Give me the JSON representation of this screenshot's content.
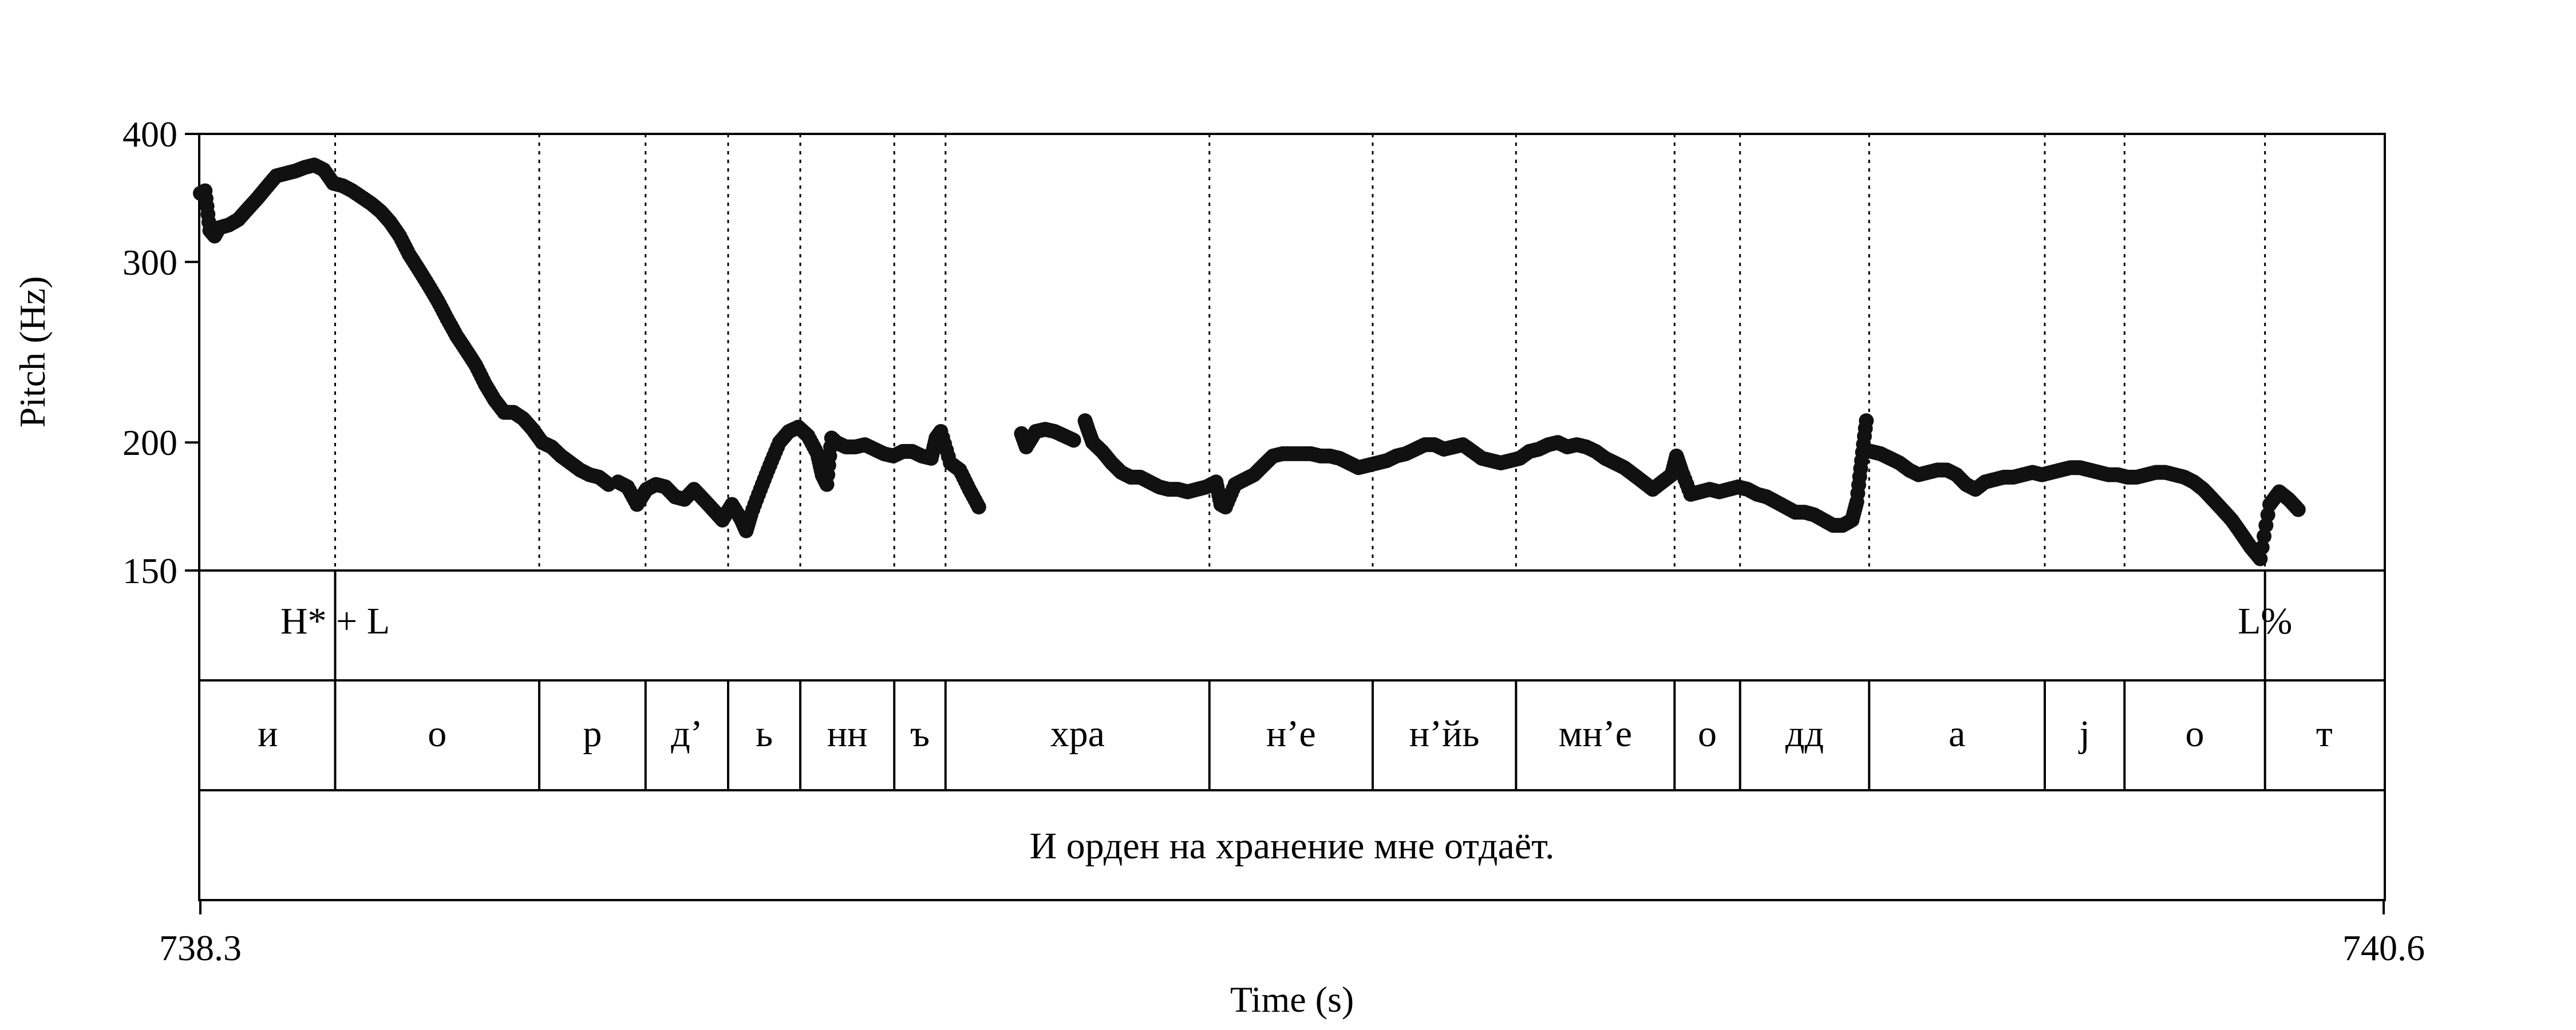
{
  "chart_data": {
    "type": "scatter",
    "xlabel": "Time (s)",
    "ylabel": "Pitch (Hz)",
    "xlim": [
      738.3,
      740.6
    ],
    "ylim": [
      150,
      400
    ],
    "yscale": "log",
    "xticks": [
      "738.3",
      "740.6"
    ],
    "yticks": [
      "150",
      "200",
      "300",
      "400"
    ],
    "grid": false,
    "boundaries": [
      738.442,
      738.657,
      738.769,
      738.856,
      738.932,
      739.031,
      739.085,
      739.363,
      739.535,
      739.686,
      739.853,
      739.922,
      740.058,
      740.243,
      740.327,
      740.475
    ],
    "pitch_segments": [
      [
        [
          738.3,
          350
        ],
        [
          738.305,
          352
        ],
        [
          738.31,
          322
        ],
        [
          738.315,
          318
        ],
        [
          738.32,
          324
        ],
        [
          738.33,
          326
        ],
        [
          738.34,
          330
        ],
        [
          738.35,
          338
        ],
        [
          738.36,
          346
        ],
        [
          738.37,
          355
        ],
        [
          738.38,
          364
        ],
        [
          738.39,
          366
        ],
        [
          738.4,
          368
        ],
        [
          738.41,
          371
        ],
        [
          738.42,
          373
        ],
        [
          738.43,
          369
        ],
        [
          738.44,
          358
        ],
        [
          738.45,
          356
        ],
        [
          738.46,
          352
        ],
        [
          738.47,
          347
        ],
        [
          738.48,
          342
        ],
        [
          738.49,
          336
        ],
        [
          738.5,
          328
        ],
        [
          738.51,
          318
        ],
        [
          738.52,
          305
        ],
        [
          738.53,
          295
        ],
        [
          738.54,
          285
        ],
        [
          738.55,
          275
        ],
        [
          738.56,
          264
        ],
        [
          738.57,
          254
        ],
        [
          738.58,
          246
        ],
        [
          738.59,
          238
        ],
        [
          738.6,
          228
        ],
        [
          738.61,
          220
        ],
        [
          738.62,
          214
        ],
        [
          738.63,
          214
        ],
        [
          738.64,
          211
        ],
        [
          738.65,
          206
        ],
        [
          738.66,
          200
        ],
        [
          738.67,
          198
        ],
        [
          738.68,
          194
        ],
        [
          738.69,
          191
        ],
        [
          738.7,
          188
        ],
        [
          738.71,
          186
        ],
        [
          738.72,
          185
        ],
        [
          738.73,
          182
        ]
      ],
      [
        [
          738.74,
          183
        ],
        [
          738.75,
          181
        ],
        [
          738.76,
          174
        ],
        [
          738.765,
          177
        ],
        [
          738.77,
          180
        ],
        [
          738.78,
          182
        ],
        [
          738.79,
          181
        ],
        [
          738.8,
          177
        ],
        [
          738.81,
          176
        ],
        [
          738.82,
          180
        ],
        [
          738.83,
          176
        ],
        [
          738.84,
          172
        ],
        [
          738.85,
          168
        ],
        [
          738.86,
          174
        ],
        [
          738.87,
          168
        ],
        [
          738.875,
          164
        ],
        [
          738.88,
          170
        ],
        [
          738.89,
          180
        ],
        [
          738.9,
          190
        ],
        [
          738.91,
          200
        ],
        [
          738.92,
          205
        ],
        [
          738.93,
          207
        ],
        [
          738.94,
          203
        ],
        [
          738.95,
          195
        ],
        [
          738.955,
          186
        ],
        [
          738.96,
          182
        ],
        [
          738.965,
          202
        ],
        [
          738.97,
          200
        ],
        [
          738.98,
          198
        ],
        [
          738.99,
          198
        ],
        [
          739.0,
          199
        ],
        [
          739.01,
          197
        ],
        [
          739.02,
          195
        ],
        [
          739.03,
          194
        ],
        [
          739.04,
          196
        ],
        [
          739.05,
          196
        ],
        [
          739.06,
          194
        ],
        [
          739.07,
          193
        ],
        [
          739.075,
          202
        ],
        [
          739.08,
          205
        ],
        [
          739.09,
          191
        ],
        [
          739.1,
          188
        ],
        [
          739.11,
          180
        ],
        [
          739.12,
          173
        ]
      ],
      [
        [
          739.165,
          204
        ],
        [
          739.17,
          198
        ],
        [
          739.18,
          205
        ],
        [
          739.19,
          206
        ],
        [
          739.2,
          205
        ],
        [
          739.21,
          203
        ],
        [
          739.22,
          201
        ]
      ],
      [
        [
          739.232,
          210
        ],
        [
          739.235,
          206
        ],
        [
          739.24,
          200
        ],
        [
          739.25,
          196
        ],
        [
          739.26,
          191
        ],
        [
          739.27,
          187
        ],
        [
          739.28,
          185
        ],
        [
          739.29,
          185
        ],
        [
          739.3,
          183
        ],
        [
          739.31,
          181
        ],
        [
          739.32,
          180
        ],
        [
          739.33,
          180
        ],
        [
          739.34,
          179
        ],
        [
          739.35,
          180
        ],
        [
          739.36,
          181
        ],
        [
          739.37,
          183
        ],
        [
          739.375,
          174
        ],
        [
          739.38,
          173
        ],
        [
          739.39,
          182
        ],
        [
          739.4,
          184
        ],
        [
          739.41,
          186
        ],
        [
          739.42,
          190
        ],
        [
          739.43,
          194
        ],
        [
          739.44,
          195
        ],
        [
          739.45,
          195
        ],
        [
          739.46,
          195
        ],
        [
          739.47,
          195
        ],
        [
          739.48,
          194
        ],
        [
          739.49,
          194
        ],
        [
          739.5,
          193
        ],
        [
          739.51,
          191
        ],
        [
          739.52,
          189
        ],
        [
          739.53,
          190
        ],
        [
          739.54,
          191
        ],
        [
          739.55,
          192
        ],
        [
          739.56,
          194
        ],
        [
          739.57,
          195
        ],
        [
          739.58,
          197
        ],
        [
          739.59,
          199
        ],
        [
          739.6,
          199
        ],
        [
          739.61,
          197
        ],
        [
          739.62,
          198
        ],
        [
          739.63,
          199
        ],
        [
          739.64,
          196
        ],
        [
          739.65,
          193
        ],
        [
          739.66,
          192
        ],
        [
          739.67,
          191
        ],
        [
          739.68,
          192
        ],
        [
          739.69,
          193
        ],
        [
          739.7,
          196
        ],
        [
          739.71,
          197
        ],
        [
          739.72,
          199
        ],
        [
          739.73,
          200
        ],
        [
          739.74,
          198
        ],
        [
          739.75,
          199
        ],
        [
          739.76,
          198
        ],
        [
          739.77,
          196
        ],
        [
          739.78,
          193
        ],
        [
          739.79,
          191
        ],
        [
          739.8,
          189
        ],
        [
          739.81,
          186
        ],
        [
          739.82,
          183
        ],
        [
          739.83,
          180
        ],
        [
          739.84,
          183
        ],
        [
          739.85,
          186
        ],
        [
          739.855,
          194
        ],
        [
          739.86,
          188
        ],
        [
          739.87,
          178
        ],
        [
          739.88,
          179
        ],
        [
          739.89,
          180
        ],
        [
          739.9,
          179
        ],
        [
          739.91,
          180
        ],
        [
          739.92,
          181
        ],
        [
          739.93,
          180
        ],
        [
          739.94,
          178
        ],
        [
          739.95,
          177
        ],
        [
          739.96,
          175
        ],
        [
          739.97,
          173
        ],
        [
          739.98,
          171
        ],
        [
          739.99,
          171
        ],
        [
          740.0,
          170
        ],
        [
          740.01,
          168
        ],
        [
          740.02,
          166
        ],
        [
          740.03,
          166
        ],
        [
          740.04,
          168
        ],
        [
          740.045,
          175
        ],
        [
          740.05,
          192
        ],
        [
          740.055,
          210
        ]
      ],
      [
        [
          740.06,
          196
        ],
        [
          740.07,
          195
        ],
        [
          740.08,
          193
        ],
        [
          740.09,
          191
        ],
        [
          740.1,
          188
        ],
        [
          740.11,
          186
        ],
        [
          740.12,
          187
        ],
        [
          740.13,
          188
        ],
        [
          740.14,
          188
        ],
        [
          740.15,
          186
        ],
        [
          740.16,
          182
        ],
        [
          740.17,
          180
        ],
        [
          740.18,
          183
        ],
        [
          740.19,
          184
        ],
        [
          740.2,
          185
        ],
        [
          740.21,
          185
        ],
        [
          740.22,
          186
        ],
        [
          740.23,
          187
        ],
        [
          740.24,
          186
        ],
        [
          740.25,
          187
        ],
        [
          740.26,
          188
        ],
        [
          740.27,
          189
        ],
        [
          740.28,
          189
        ],
        [
          740.29,
          188
        ],
        [
          740.3,
          187
        ],
        [
          740.31,
          186
        ],
        [
          740.32,
          186
        ],
        [
          740.33,
          185
        ],
        [
          740.34,
          185
        ],
        [
          740.35,
          186
        ],
        [
          740.36,
          187
        ],
        [
          740.37,
          187
        ],
        [
          740.38,
          186
        ],
        [
          740.39,
          185
        ],
        [
          740.4,
          183
        ],
        [
          740.41,
          180
        ],
        [
          740.42,
          176
        ],
        [
          740.43,
          172
        ],
        [
          740.44,
          168
        ],
        [
          740.45,
          163
        ],
        [
          740.46,
          158
        ],
        [
          740.47,
          154
        ],
        [
          740.48,
          174
        ],
        [
          740.49,
          179
        ],
        [
          740.5,
          176
        ],
        [
          740.51,
          172
        ]
      ]
    ],
    "tiers": {
      "tones": [
        {
          "time": 738.442,
          "label": "H* + L"
        },
        {
          "time": 740.475,
          "label": "L%"
        }
      ],
      "segments": [
        {
          "start": 738.3,
          "end": 738.442,
          "label": "и"
        },
        {
          "start": 738.442,
          "end": 738.657,
          "label": "о"
        },
        {
          "start": 738.657,
          "end": 738.769,
          "label": "р"
        },
        {
          "start": 738.769,
          "end": 738.856,
          "label": "д’"
        },
        {
          "start": 738.856,
          "end": 738.932,
          "label": "ь"
        },
        {
          "start": 738.932,
          "end": 739.031,
          "label": "нн"
        },
        {
          "start": 739.031,
          "end": 739.085,
          "label": "ъ"
        },
        {
          "start": 739.085,
          "end": 739.363,
          "label": "хра"
        },
        {
          "start": 739.363,
          "end": 739.535,
          "label": "н’е"
        },
        {
          "start": 739.535,
          "end": 739.686,
          "label": "н’йь"
        },
        {
          "start": 739.686,
          "end": 739.853,
          "label": "мн’е"
        },
        {
          "start": 739.853,
          "end": 739.922,
          "label": "о"
        },
        {
          "start": 739.922,
          "end": 740.058,
          "label": "дд"
        },
        {
          "start": 740.058,
          "end": 740.243,
          "label": "а"
        },
        {
          "start": 740.243,
          "end": 740.327,
          "label": "j"
        },
        {
          "start": 740.327,
          "end": 740.475,
          "label": "о"
        },
        {
          "start": 740.475,
          "end": 740.6,
          "label": "т"
        }
      ],
      "sentence": "И орден на хранение мне отдаёт."
    }
  }
}
